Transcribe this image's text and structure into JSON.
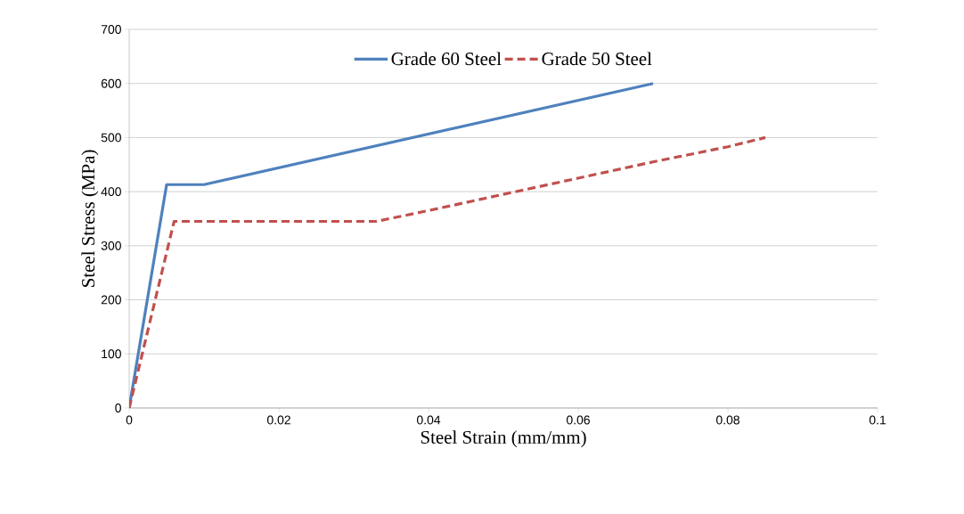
{
  "chart_data": {
    "type": "line",
    "xlabel": "Steel Strain (mm/mm)",
    "ylabel": "Steel Stress (MPa)",
    "xlim": [
      0,
      0.1
    ],
    "xticks": [
      0,
      0.02,
      0.04,
      0.06,
      0.08,
      0.1
    ],
    "ylim": [
      0,
      700
    ],
    "yticks": [
      0,
      100,
      200,
      300,
      400,
      500,
      600,
      700
    ],
    "grid": "y",
    "legend": "top",
    "marker": "none",
    "series": [
      {
        "name": "Grade 60 Steel",
        "color": "#4f81bd",
        "line_style": "solid",
        "x": [
          0,
          0.005,
          0.01,
          0.07
        ],
        "values": [
          0,
          413,
          413,
          600
        ]
      },
      {
        "name": "Grade 50 Steel",
        "color": "#c0504d",
        "line_style": "dashed",
        "x": [
          0,
          0.006,
          0.033,
          0.04,
          0.05,
          0.06,
          0.07,
          0.08,
          0.085
        ],
        "values": [
          0,
          345,
          345,
          365,
          395,
          425,
          455,
          483,
          500
        ]
      }
    ]
  }
}
